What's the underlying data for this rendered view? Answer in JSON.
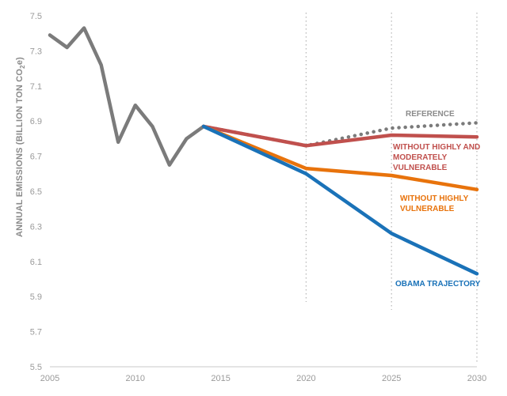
{
  "chart_data": {
    "type": "line",
    "ylabel_main": "ANNUAL EMISSIONS (BILLION TON CO",
    "ylabel_sub": "2",
    "ylabel_end": "e)",
    "xlim": [
      2005,
      2030
    ],
    "ylim": [
      5.5,
      7.5
    ],
    "x_ticks": [
      "2005",
      "2010",
      "2015",
      "2020",
      "2025",
      "2030"
    ],
    "y_ticks": [
      "5.5",
      "5.7",
      "5.9",
      "6.1",
      "6.3",
      "6.5",
      "6.7",
      "6.9",
      "7.1",
      "7.3",
      "7.5"
    ],
    "vertical_reference_lines": [
      2020,
      2025,
      2030
    ],
    "colors": {
      "historical": "#7b7b7b",
      "reference": "#7b7b7b",
      "moderate": "#c0504d",
      "highly": "#e8730c",
      "obama": "#1a72b8"
    },
    "historical": {
      "x": [
        2005,
        2006,
        2007,
        2008,
        2009,
        2010,
        2011,
        2012,
        2013,
        2014
      ],
      "y": [
        7.39,
        7.32,
        7.43,
        7.22,
        6.78,
        6.99,
        6.87,
        6.65,
        6.8,
        6.87
      ]
    },
    "series": [
      {
        "key": "reference",
        "name": "REFERENCE",
        "style": "dotted",
        "x": [
          2014,
          2020,
          2025,
          2030
        ],
        "y": [
          6.87,
          6.76,
          6.86,
          6.89
        ]
      },
      {
        "key": "moderate",
        "name": "WITHOUT HIGHLY AND MODERATELY VULNERABLE",
        "style": "solid",
        "x": [
          2014,
          2020,
          2025,
          2030
        ],
        "y": [
          6.87,
          6.76,
          6.82,
          6.81
        ]
      },
      {
        "key": "highly",
        "name": "WITHOUT HIGHLY VULNERABLE",
        "style": "solid",
        "x": [
          2014,
          2020,
          2025,
          2030
        ],
        "y": [
          6.87,
          6.63,
          6.59,
          6.51
        ]
      },
      {
        "key": "obama",
        "name": "OBAMA TRAJECTORY",
        "style": "solid",
        "x": [
          2014,
          2020,
          2025,
          2030
        ],
        "y": [
          6.87,
          6.6,
          6.26,
          6.03
        ]
      }
    ],
    "annotations": [
      {
        "key": "reference",
        "lines": [
          "REFERENCE"
        ]
      },
      {
        "key": "moderate",
        "lines": [
          "WITHOUT HIGHLY AND",
          "MODERATELY",
          "VULNERABLE"
        ]
      },
      {
        "key": "highly",
        "lines": [
          "WITHOUT HIGHLY",
          "VULNERABLE"
        ]
      },
      {
        "key": "obama",
        "lines": [
          "OBAMA TRAJECTORY"
        ]
      }
    ]
  }
}
